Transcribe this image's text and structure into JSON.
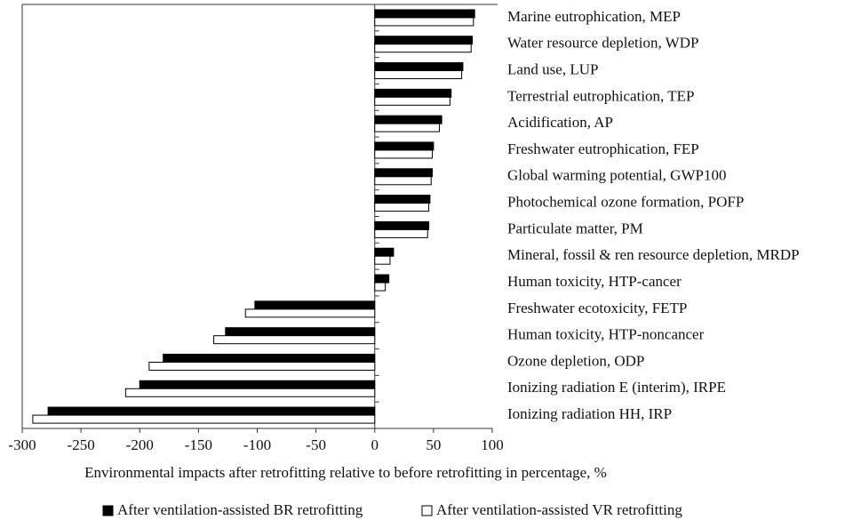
{
  "chart_data": {
    "type": "hbar",
    "x_label": "Environmental impacts after retrofitting relative to before retrofitting in percentage, %",
    "categories": [
      "Marine eutrophication, MEP",
      "Water resource depletion, WDP",
      "Land use, LUP",
      "Terrestrial eutrophication, TEP",
      "Acidification, AP",
      "Freshwater eutrophication, FEP",
      "Global warming potential, GWP100",
      "Photochemical ozone formation, POFP",
      "Particulate matter, PM",
      "Mineral, fossil & ren resource depletion, MRDP",
      "Human toxicity, HTP-cancer",
      "Freshwater ecotoxicity, FETP",
      "Human toxicity, HTP-noncancer",
      "Ozone depletion, ODP",
      "Ionizing radiation E (interim), IRPE",
      "Ionizing radiation HH, IRP"
    ],
    "series": [
      {
        "name": "After ventilation-assisted BR retrofitting",
        "color": "#000000",
        "values": [
          85,
          83,
          75,
          65,
          57,
          50,
          49,
          47,
          46,
          16,
          12,
          -102,
          -127,
          -180,
          -200,
          -278
        ]
      },
      {
        "name": "After ventilation-assisted VR retrofitting",
        "color": "#ffffff",
        "values": [
          84,
          82,
          74,
          64,
          55,
          49,
          48,
          46,
          45,
          13,
          9,
          -110,
          -137,
          -192,
          -212,
          -291
        ]
      }
    ],
    "xlim": [
      -300,
      100
    ],
    "xticks": [
      -300,
      -250,
      -200,
      -150,
      -100,
      -50,
      0,
      50,
      100
    ],
    "grid": false,
    "legend": "bottom"
  }
}
